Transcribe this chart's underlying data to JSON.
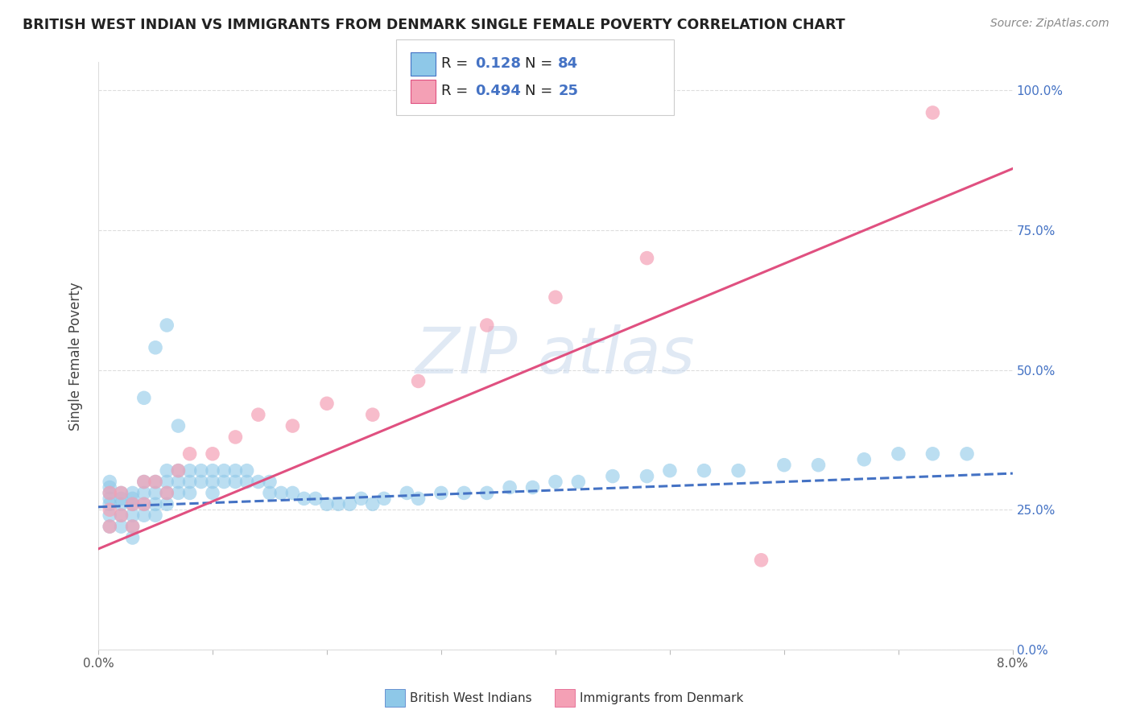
{
  "title": "BRITISH WEST INDIAN VS IMMIGRANTS FROM DENMARK SINGLE FEMALE POVERTY CORRELATION CHART",
  "source": "Source: ZipAtlas.com",
  "ylabel": "Single Female Poverty",
  "ylabel_right_ticks": [
    "0.0%",
    "25.0%",
    "50.0%",
    "75.0%",
    "100.0%"
  ],
  "ylabel_right_vals": [
    0.0,
    0.25,
    0.5,
    0.75,
    1.0
  ],
  "x_min": 0.0,
  "x_max": 0.08,
  "y_min": 0.0,
  "y_max": 1.05,
  "R1": 0.128,
  "N1": 84,
  "R2": 0.494,
  "N2": 25,
  "color1": "#8ec8e8",
  "color2": "#f4a0b5",
  "trend1_color": "#4472c4",
  "trend2_color": "#e05080",
  "legend_label1": "British West Indians",
  "legend_label2": "Immigrants from Denmark",
  "bwi_x": [
    0.001,
    0.001,
    0.001,
    0.001,
    0.001,
    0.001,
    0.001,
    0.002,
    0.002,
    0.002,
    0.002,
    0.002,
    0.003,
    0.003,
    0.003,
    0.003,
    0.003,
    0.003,
    0.004,
    0.004,
    0.004,
    0.004,
    0.005,
    0.005,
    0.005,
    0.005,
    0.006,
    0.006,
    0.006,
    0.006,
    0.007,
    0.007,
    0.007,
    0.008,
    0.008,
    0.008,
    0.009,
    0.009,
    0.01,
    0.01,
    0.01,
    0.011,
    0.011,
    0.012,
    0.012,
    0.013,
    0.013,
    0.014,
    0.015,
    0.015,
    0.016,
    0.017,
    0.018,
    0.019,
    0.02,
    0.021,
    0.022,
    0.023,
    0.024,
    0.025,
    0.027,
    0.028,
    0.03,
    0.032,
    0.034,
    0.036,
    0.038,
    0.04,
    0.042,
    0.045,
    0.048,
    0.05,
    0.053,
    0.056,
    0.06,
    0.063,
    0.067,
    0.07,
    0.073,
    0.076,
    0.004,
    0.005,
    0.006,
    0.007
  ],
  "bwi_y": [
    0.22,
    0.24,
    0.26,
    0.27,
    0.28,
    0.29,
    0.3,
    0.22,
    0.24,
    0.26,
    0.27,
    0.28,
    0.2,
    0.22,
    0.24,
    0.26,
    0.27,
    0.28,
    0.24,
    0.26,
    0.28,
    0.3,
    0.24,
    0.26,
    0.28,
    0.3,
    0.26,
    0.28,
    0.3,
    0.32,
    0.28,
    0.3,
    0.32,
    0.28,
    0.3,
    0.32,
    0.3,
    0.32,
    0.28,
    0.3,
    0.32,
    0.3,
    0.32,
    0.3,
    0.32,
    0.3,
    0.32,
    0.3,
    0.28,
    0.3,
    0.28,
    0.28,
    0.27,
    0.27,
    0.26,
    0.26,
    0.26,
    0.27,
    0.26,
    0.27,
    0.28,
    0.27,
    0.28,
    0.28,
    0.28,
    0.29,
    0.29,
    0.3,
    0.3,
    0.31,
    0.31,
    0.32,
    0.32,
    0.32,
    0.33,
    0.33,
    0.34,
    0.35,
    0.35,
    0.35,
    0.45,
    0.54,
    0.58,
    0.4
  ],
  "den_x": [
    0.001,
    0.001,
    0.001,
    0.002,
    0.002,
    0.003,
    0.003,
    0.004,
    0.004,
    0.005,
    0.006,
    0.007,
    0.008,
    0.01,
    0.012,
    0.014,
    0.017,
    0.02,
    0.024,
    0.028,
    0.034,
    0.04,
    0.048,
    0.058,
    0.073
  ],
  "den_y": [
    0.22,
    0.25,
    0.28,
    0.24,
    0.28,
    0.22,
    0.26,
    0.26,
    0.3,
    0.3,
    0.28,
    0.32,
    0.35,
    0.35,
    0.38,
    0.42,
    0.4,
    0.44,
    0.42,
    0.48,
    0.58,
    0.63,
    0.7,
    0.16,
    0.96
  ],
  "trend1_x0": 0.0,
  "trend1_x1": 0.08,
  "trend1_y0": 0.255,
  "trend1_y1": 0.315,
  "trend2_x0": 0.0,
  "trend2_x1": 0.08,
  "trend2_y0": 0.18,
  "trend2_y1": 0.86
}
